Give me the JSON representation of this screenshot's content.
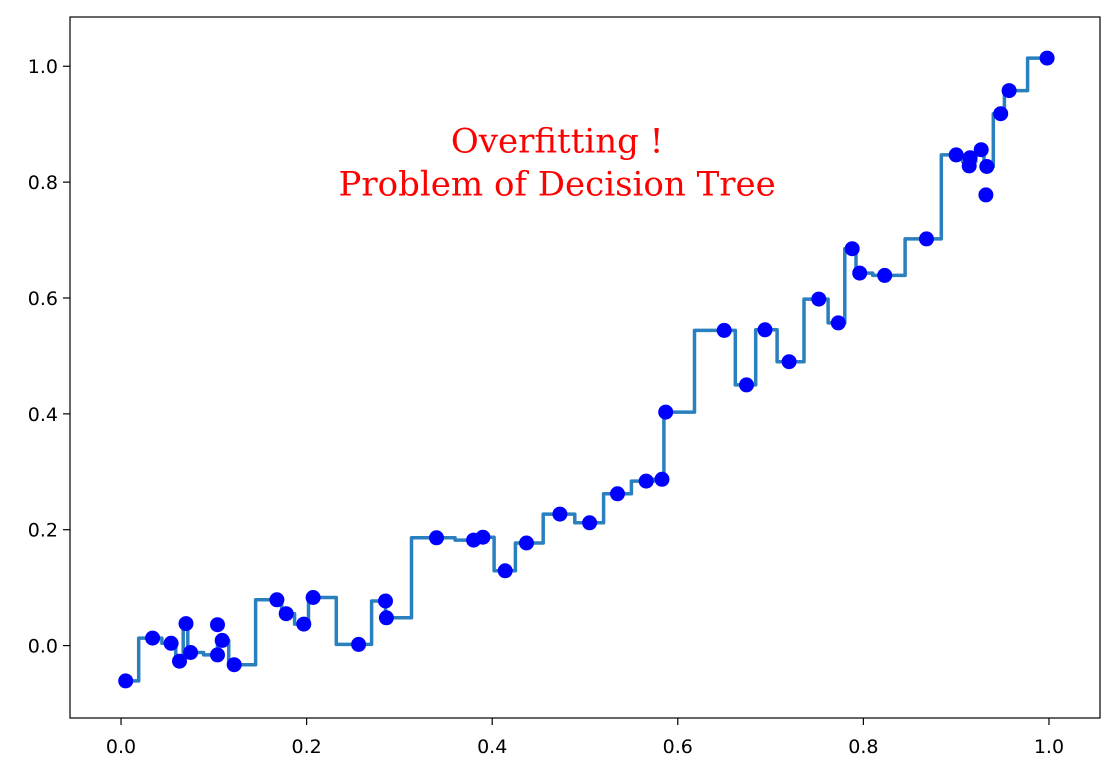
{
  "chart_data": {
    "type": "scatter",
    "title": "",
    "xlabel": "",
    "ylabel": "",
    "xlim": [
      -0.055,
      1.055
    ],
    "ylim": [
      -0.125,
      1.085
    ],
    "x_ticks": [
      0.0,
      0.2,
      0.4,
      0.6,
      0.8,
      1.0
    ],
    "x_tick_labels": [
      "0.0",
      "0.2",
      "0.4",
      "0.6",
      "0.8",
      "1.0"
    ],
    "y_ticks": [
      0.0,
      0.2,
      0.4,
      0.6,
      0.8,
      1.0
    ],
    "y_tick_labels": [
      "0.0",
      "0.2",
      "0.4",
      "0.6",
      "0.8",
      "1.0"
    ],
    "grid": false,
    "legend": "none",
    "annotation": {
      "lines": [
        "Overfitting !",
        "Problem of Decision Tree"
      ],
      "color": "#ff0000",
      "x": 0.47,
      "y": 0.82
    },
    "series": [
      {
        "kind": "scatter",
        "color": "#0000ff",
        "points": [
          [
            0.005,
            -0.061
          ],
          [
            0.034,
            0.013
          ],
          [
            0.054,
            0.004
          ],
          [
            0.063,
            -0.027
          ],
          [
            0.07,
            0.038
          ],
          [
            0.075,
            -0.012
          ],
          [
            0.104,
            0.036
          ],
          [
            0.104,
            -0.016
          ],
          [
            0.109,
            0.009
          ],
          [
            0.122,
            -0.033
          ],
          [
            0.168,
            0.079
          ],
          [
            0.178,
            0.055
          ],
          [
            0.197,
            0.037
          ],
          [
            0.207,
            0.083
          ],
          [
            0.256,
            0.002
          ],
          [
            0.285,
            0.077
          ],
          [
            0.286,
            0.048
          ],
          [
            0.34,
            0.186
          ],
          [
            0.38,
            0.182
          ],
          [
            0.39,
            0.187
          ],
          [
            0.414,
            0.129
          ],
          [
            0.437,
            0.177
          ],
          [
            0.473,
            0.227
          ],
          [
            0.505,
            0.212
          ],
          [
            0.535,
            0.262
          ],
          [
            0.566,
            0.284
          ],
          [
            0.583,
            0.287
          ],
          [
            0.587,
            0.403
          ],
          [
            0.65,
            0.544
          ],
          [
            0.674,
            0.45
          ],
          [
            0.694,
            0.545
          ],
          [
            0.72,
            0.49
          ],
          [
            0.752,
            0.598
          ],
          [
            0.773,
            0.557
          ],
          [
            0.788,
            0.685
          ],
          [
            0.796,
            0.643
          ],
          [
            0.823,
            0.639
          ],
          [
            0.868,
            0.702
          ],
          [
            0.9,
            0.847
          ],
          [
            0.914,
            0.828
          ],
          [
            0.915,
            0.842
          ],
          [
            0.927,
            0.856
          ],
          [
            0.932,
            0.778
          ],
          [
            0.933,
            0.827
          ],
          [
            0.948,
            0.918
          ],
          [
            0.957,
            0.958
          ],
          [
            0.998,
            1.014
          ]
        ]
      },
      {
        "kind": "step-line",
        "color": "#2a7fbf",
        "points": [
          [
            0.01,
            -0.061
          ],
          [
            0.019,
            -0.061
          ],
          [
            0.019,
            0.013
          ],
          [
            0.044,
            0.013
          ],
          [
            0.044,
            0.004
          ],
          [
            0.059,
            0.004
          ],
          [
            0.059,
            -0.027
          ],
          [
            0.067,
            -0.027
          ],
          [
            0.067,
            0.038
          ],
          [
            0.072,
            0.038
          ],
          [
            0.072,
            -0.012
          ],
          [
            0.089,
            -0.012
          ],
          [
            0.089,
            -0.016
          ],
          [
            0.104,
            -0.016
          ],
          [
            0.104,
            0.009
          ],
          [
            0.116,
            0.009
          ],
          [
            0.116,
            -0.033
          ],
          [
            0.145,
            -0.033
          ],
          [
            0.145,
            0.079
          ],
          [
            0.173,
            0.079
          ],
          [
            0.173,
            0.055
          ],
          [
            0.187,
            0.055
          ],
          [
            0.187,
            0.037
          ],
          [
            0.202,
            0.037
          ],
          [
            0.202,
            0.083
          ],
          [
            0.232,
            0.083
          ],
          [
            0.232,
            0.002
          ],
          [
            0.27,
            0.002
          ],
          [
            0.27,
            0.077
          ],
          [
            0.285,
            0.077
          ],
          [
            0.285,
            0.048
          ],
          [
            0.313,
            0.048
          ],
          [
            0.313,
            0.186
          ],
          [
            0.36,
            0.186
          ],
          [
            0.36,
            0.182
          ],
          [
            0.385,
            0.182
          ],
          [
            0.385,
            0.187
          ],
          [
            0.402,
            0.187
          ],
          [
            0.402,
            0.129
          ],
          [
            0.425,
            0.129
          ],
          [
            0.425,
            0.177
          ],
          [
            0.455,
            0.177
          ],
          [
            0.455,
            0.227
          ],
          [
            0.489,
            0.227
          ],
          [
            0.489,
            0.212
          ],
          [
            0.52,
            0.212
          ],
          [
            0.52,
            0.262
          ],
          [
            0.55,
            0.262
          ],
          [
            0.55,
            0.284
          ],
          [
            0.574,
            0.284
          ],
          [
            0.574,
            0.287
          ],
          [
            0.585,
            0.287
          ],
          [
            0.585,
            0.403
          ],
          [
            0.618,
            0.403
          ],
          [
            0.618,
            0.544
          ],
          [
            0.662,
            0.544
          ],
          [
            0.662,
            0.45
          ],
          [
            0.684,
            0.45
          ],
          [
            0.684,
            0.545
          ],
          [
            0.707,
            0.545
          ],
          [
            0.707,
            0.49
          ],
          [
            0.736,
            0.49
          ],
          [
            0.736,
            0.598
          ],
          [
            0.762,
            0.598
          ],
          [
            0.762,
            0.557
          ],
          [
            0.78,
            0.557
          ],
          [
            0.78,
            0.685
          ],
          [
            0.792,
            0.685
          ],
          [
            0.792,
            0.643
          ],
          [
            0.81,
            0.643
          ],
          [
            0.81,
            0.639
          ],
          [
            0.845,
            0.639
          ],
          [
            0.845,
            0.702
          ],
          [
            0.884,
            0.702
          ],
          [
            0.884,
            0.847
          ],
          [
            0.907,
            0.847
          ],
          [
            0.907,
            0.835
          ],
          [
            0.921,
            0.835
          ],
          [
            0.921,
            0.856
          ],
          [
            0.93,
            0.856
          ],
          [
            0.93,
            0.827
          ],
          [
            0.94,
            0.827
          ],
          [
            0.94,
            0.918
          ],
          [
            0.952,
            0.918
          ],
          [
            0.952,
            0.958
          ],
          [
            0.977,
            0.958
          ],
          [
            0.977,
            1.014
          ],
          [
            0.998,
            1.014
          ]
        ]
      }
    ]
  }
}
